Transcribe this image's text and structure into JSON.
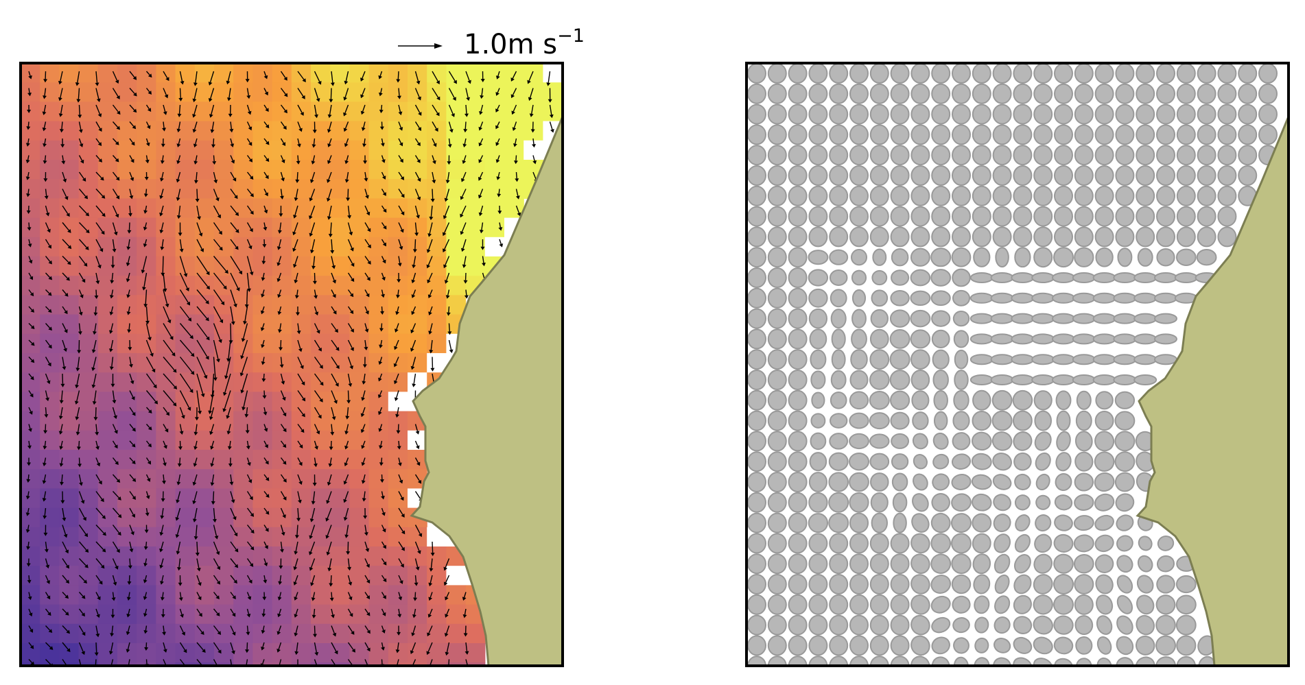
{
  "chart_data": [
    {
      "type": "heatmap",
      "overlay": "quiver",
      "title": "",
      "xlabel": "",
      "ylabel": "",
      "colormap": "plasma",
      "grid": false,
      "legend": "none",
      "scale_arrow": {
        "label_value": "1.0",
        "label_unit": "m s",
        "label_exponent": "−1",
        "magnitude": 1.0
      },
      "colors": {
        "land": "#bec083",
        "land_edge": "#7c7e52",
        "frame": "#000000",
        "no_data": "#ffffff"
      }
    },
    {
      "type": "scatter",
      "marker": "ellipse",
      "title": "",
      "xlabel": "",
      "ylabel": "",
      "grid": false,
      "legend": "none",
      "colors": {
        "ellipse_fill": "#b7b7b7",
        "ellipse_edge": "#999999",
        "land": "#bec083",
        "land_edge": "#7c7e52",
        "frame": "#000000"
      }
    }
  ]
}
